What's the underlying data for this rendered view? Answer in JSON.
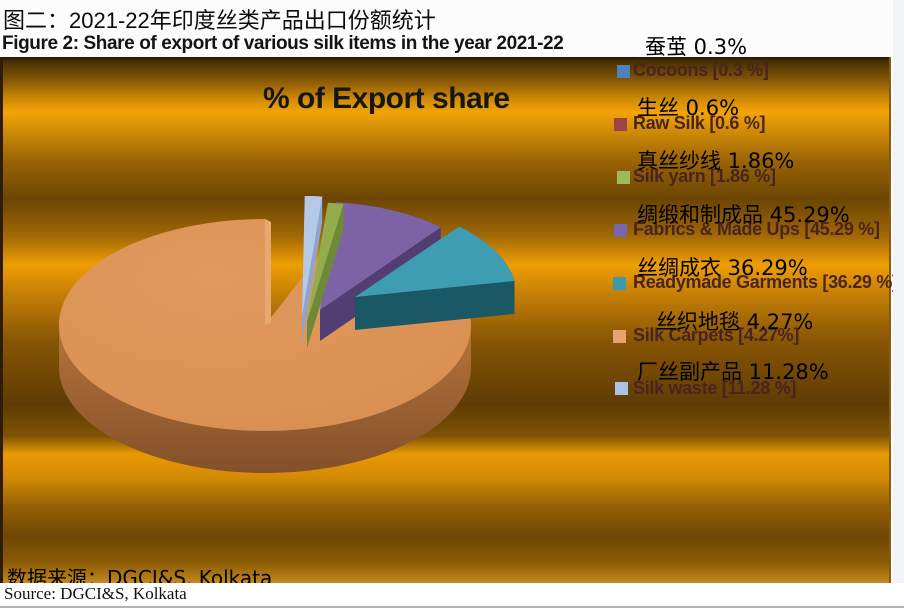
{
  "header": {
    "title_zh": "图二：2021-22年印度丝类产品出口份额统计",
    "title_en": "Figure 2: Share of export of various silk items in the year 2021-22"
  },
  "chart": {
    "title": "% of Export share"
  },
  "chart_data": {
    "type": "pie",
    "title": "% of Export share",
    "categories": [
      "Cocoons",
      "Raw Silk",
      "Silk yarn",
      "Fabrics & Made Ups",
      "Readymade Garments",
      "Silk Carpets",
      "Silk waste"
    ],
    "categories_zh": [
      "蚕茧",
      "生丝",
      "真丝纱线",
      "绸缎和制成品",
      "丝绸成衣",
      "丝织地毯",
      "厂丝副产品"
    ],
    "values": [
      0.3,
      0.6,
      1.86,
      45.29,
      36.29,
      4.27,
      11.28
    ],
    "unit": "%",
    "legend_position": "right",
    "style": "3d-exploded-pie"
  },
  "legend": {
    "items": [
      {
        "zh_label": "蚕茧 0.3%",
        "en_label": "Cocoons [0.3 %]",
        "color": "#4f81bd"
      },
      {
        "zh_label": "生丝 0.6%",
        "en_label": "Raw Silk [0.6 %]",
        "color": "#9e4448"
      },
      {
        "zh_label": "真丝纱线 1.86%",
        "en_label": "Silk yarn [1.86 %]",
        "color": "#9bbb59"
      },
      {
        "zh_label": "绸缎和制成品 45.29%",
        "en_label": "Fabrics & Made Ups [45.29 %]",
        "color": "#7767ae"
      },
      {
        "zh_label": "丝绸成衣 36.29%",
        "en_label": "Readymade Garments [36.29 %]",
        "color": "#3d9aad"
      },
      {
        "zh_label": "丝织地毯 4.27%",
        "en_label": "Silk Carpets [4.27%]",
        "color": "#e9a271"
      },
      {
        "zh_label": "厂丝副产品 11.28%",
        "en_label": "Silk waste [11.28 %]",
        "color": "#aac4e8"
      }
    ]
  },
  "pie_render": {
    "body_top": "#d98e4f",
    "body_top_light": "#e09a5e",
    "body_rim_top": "#b5743c",
    "body_rim_bottom": "#84502a",
    "notch_wall": "#e7a96f",
    "slices": [
      {
        "name": "purple-slice",
        "top": "#7d63a6",
        "side": "#523e73"
      },
      {
        "name": "teal-slice",
        "top": "#3e9db3",
        "side": "#1a5866"
      },
      {
        "name": "green-sliver",
        "top": "#93ac4c",
        "side": "#6e8a39"
      },
      {
        "name": "lightblue-sliver",
        "top": "#b6c9e9",
        "side": "#8ea5cc"
      }
    ]
  },
  "footer": {
    "source_zh": "数据来源：DGCI&S, Kolkata",
    "source_en": "Source: DGCI&S, Kolkata"
  }
}
